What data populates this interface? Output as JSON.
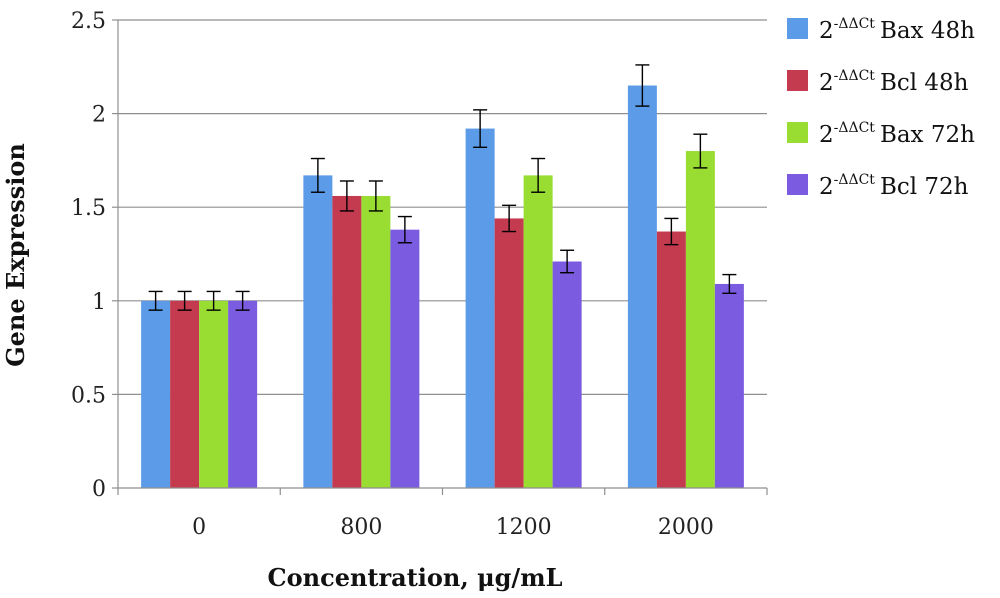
{
  "chart_data": {
    "type": "bar",
    "title": "",
    "xlabel": "Concentration, μg/mL",
    "ylabel": "Gene Expression",
    "ylim": [
      0,
      2.5
    ],
    "yticks": [
      "0",
      "0.5",
      "1",
      "1.5",
      "2",
      "2.5"
    ],
    "ytick_values": [
      0,
      0.5,
      1,
      1.5,
      2,
      2.5
    ],
    "grid": true,
    "legend_position": "right",
    "categories": [
      "0",
      "800",
      "1200",
      "2000"
    ],
    "series": [
      {
        "name": "Bax 48h",
        "prefix": "2",
        "superscript": "-ΔΔCt",
        "color": "#5B9BE8",
        "values": [
          1.0,
          1.67,
          1.92,
          2.15
        ],
        "errors": [
          0.05,
          0.09,
          0.1,
          0.11
        ]
      },
      {
        "name": "Bcl 48h",
        "prefix": "2",
        "superscript": "-ΔΔCt",
        "color": "#C43A4F",
        "values": [
          1.0,
          1.56,
          1.44,
          1.37
        ],
        "errors": [
          0.05,
          0.08,
          0.07,
          0.07
        ]
      },
      {
        "name": "Bax 72h",
        "prefix": "2",
        "superscript": "-ΔΔCt",
        "color": "#99DD33",
        "values": [
          1.0,
          1.56,
          1.67,
          1.8
        ],
        "errors": [
          0.05,
          0.08,
          0.09,
          0.09
        ]
      },
      {
        "name": "Bcl 72h",
        "prefix": "2",
        "superscript": "-ΔΔCt",
        "color": "#7B5CE0",
        "values": [
          1.0,
          1.38,
          1.21,
          1.09
        ],
        "errors": [
          0.05,
          0.07,
          0.06,
          0.05
        ]
      }
    ]
  }
}
